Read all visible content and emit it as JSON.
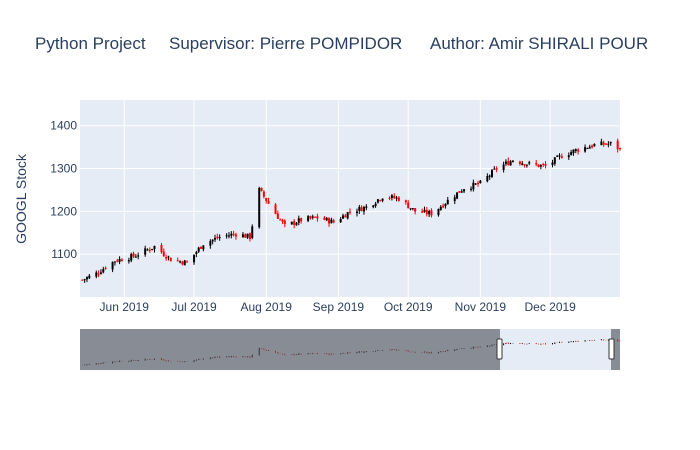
{
  "title_parts": [
    "Python Project",
    "Supervisor: Pierre POMPIDOR",
    "Author: Amir SHIRALI POUR"
  ],
  "chart_data": {
    "type": "candlestick",
    "title": "Python Project     Supervisor: Pierre POMPIDOR      Author: Amir SHIRALI POUR",
    "ylabel": "GOOGL Stock",
    "xlabel": "",
    "x_range": [
      "2019-05-13",
      "2019-12-31"
    ],
    "ylim": [
      1000,
      1460
    ],
    "y_ticks": [
      1100,
      1200,
      1300,
      1400
    ],
    "x_ticks": [
      {
        "date": "2019-06-01",
        "label": "Jun 2019"
      },
      {
        "date": "2019-07-01",
        "label": "Jul 2019"
      },
      {
        "date": "2019-08-01",
        "label": "Aug 2019"
      },
      {
        "date": "2019-09-01",
        "label": "Sep 2019"
      },
      {
        "date": "2019-10-01",
        "label": "Oct 2019"
      },
      {
        "date": "2019-11-01",
        "label": "Nov 2019"
      },
      {
        "date": "2019-12-01",
        "label": "Dec 2019"
      }
    ],
    "grid": true,
    "increasing_color": "#000000",
    "decreasing_color": "#ff0000",
    "rangeslider": true,
    "rangeslider_window": [
      "2019-11-01",
      "2019-12-20"
    ],
    "trend_points": [
      {
        "date": "2019-05-14",
        "close": 1040
      },
      {
        "date": "2019-05-20",
        "close": 1055
      },
      {
        "date": "2019-05-28",
        "close": 1085
      },
      {
        "date": "2019-06-05",
        "close": 1095
      },
      {
        "date": "2019-06-14",
        "close": 1118
      },
      {
        "date": "2019-06-21",
        "close": 1088
      },
      {
        "date": "2019-06-28",
        "close": 1080
      },
      {
        "date": "2019-07-05",
        "close": 1125
      },
      {
        "date": "2019-07-12",
        "close": 1140
      },
      {
        "date": "2019-07-19",
        "close": 1148
      },
      {
        "date": "2019-07-25",
        "close": 1140
      },
      {
        "date": "2019-07-29",
        "close": 1250
      },
      {
        "date": "2019-08-05",
        "close": 1195
      },
      {
        "date": "2019-08-09",
        "close": 1165
      },
      {
        "date": "2019-08-16",
        "close": 1180
      },
      {
        "date": "2019-08-23",
        "close": 1185
      },
      {
        "date": "2019-08-30",
        "close": 1175
      },
      {
        "date": "2019-09-06",
        "close": 1200
      },
      {
        "date": "2019-09-13",
        "close": 1210
      },
      {
        "date": "2019-09-20",
        "close": 1235
      },
      {
        "date": "2019-09-27",
        "close": 1230
      },
      {
        "date": "2019-10-04",
        "close": 1200
      },
      {
        "date": "2019-10-11",
        "close": 1195
      },
      {
        "date": "2019-10-18",
        "close": 1225
      },
      {
        "date": "2019-10-25",
        "close": 1255
      },
      {
        "date": "2019-11-01",
        "close": 1265
      },
      {
        "date": "2019-11-08",
        "close": 1300
      },
      {
        "date": "2019-11-15",
        "close": 1320
      },
      {
        "date": "2019-11-22",
        "close": 1310
      },
      {
        "date": "2019-11-29",
        "close": 1305
      },
      {
        "date": "2019-12-06",
        "close": 1330
      },
      {
        "date": "2019-12-13",
        "close": 1345
      },
      {
        "date": "2019-12-20",
        "close": 1355
      },
      {
        "date": "2019-12-27",
        "close": 1358
      },
      {
        "date": "2019-12-31",
        "close": 1345
      }
    ]
  }
}
